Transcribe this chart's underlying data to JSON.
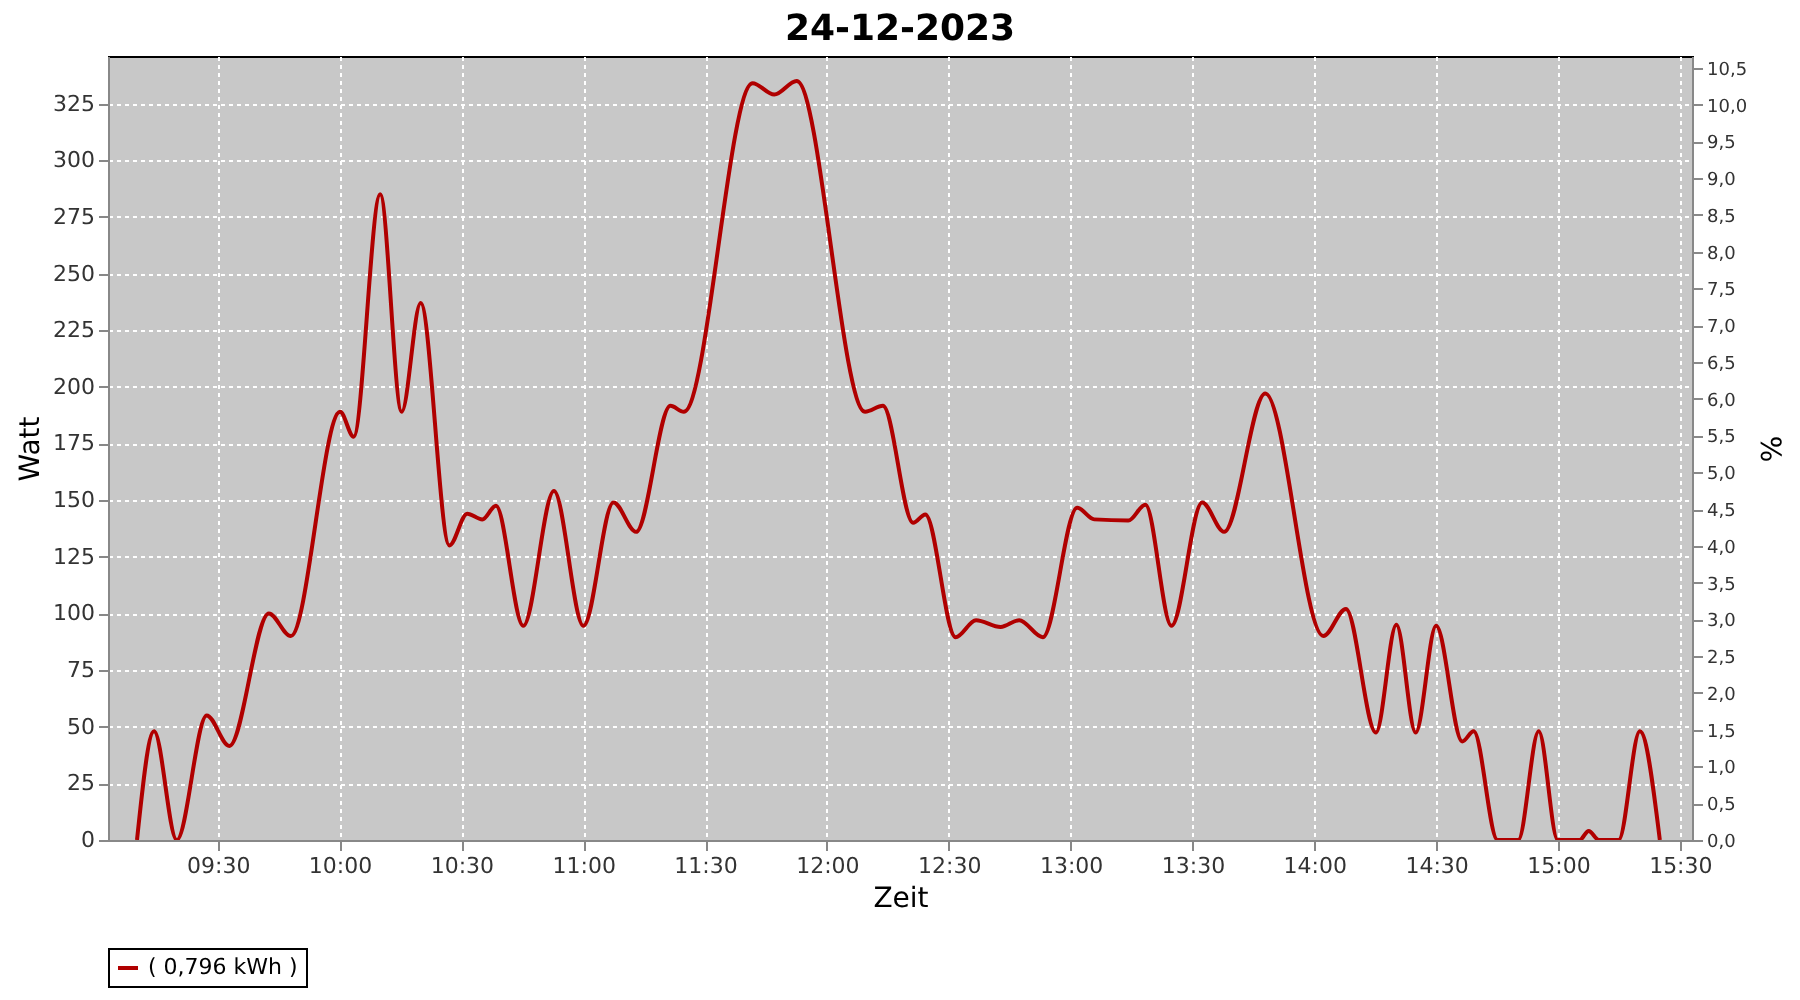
{
  "chart_data": {
    "type": "line",
    "title": "24-12-2023",
    "xlabel": "Zeit",
    "ylabel": "Watt",
    "y2label": "%",
    "x": [
      9.169,
      9.239,
      9.332,
      9.455,
      9.548,
      9.71,
      9.8,
      10.0025,
      10.058,
      10.167,
      10.255,
      10.333,
      10.451,
      10.524,
      10.586,
      10.642,
      10.754,
      10.88,
      11.001,
      11.124,
      11.217,
      11.358,
      11.413,
      11.695,
      11.784,
      11.876,
      12.157,
      12.23,
      12.354,
      12.404,
      12.528,
      12.612,
      12.713,
      12.789,
      12.886,
      13.027,
      13.097,
      13.237,
      13.307,
      13.414,
      13.54,
      13.63,
      13.799,
      14.037,
      14.13,
      14.253,
      14.337,
      14.416,
      14.5,
      14.607,
      14.654,
      14.752,
      14.837,
      14.921,
      14.999,
      15.089,
      15.126,
      15.168,
      15.249,
      15.336,
      15.418
    ],
    "series": [
      {
        "name": "( 0,796 kWh )",
        "color": "#b00000",
        "values": [
          0,
          48,
          0,
          55,
          41.5,
          100,
          90,
          189,
          178,
          285,
          189,
          237,
          130,
          144,
          141.5,
          147.5,
          94.5,
          154,
          94.5,
          149,
          136,
          191.6,
          189,
          334,
          329,
          335,
          189,
          191.6,
          140,
          143.7,
          89.5,
          97,
          94,
          97,
          89.5,
          146.6,
          141.5,
          141,
          148,
          94.5,
          149,
          136,
          197,
          90,
          102,
          47.4,
          95,
          47.4,
          94.5,
          43.5,
          48,
          0,
          0,
          48,
          0,
          0,
          4,
          0,
          0,
          48,
          0
        ]
      }
    ],
    "xlim": [
      9.05,
      15.55
    ],
    "xticks": [
      {
        "value": 9.5,
        "label": "09:30"
      },
      {
        "value": 10,
        "label": "10:00"
      },
      {
        "value": 10.5,
        "label": "10:30"
      },
      {
        "value": 11,
        "label": "11:00"
      },
      {
        "value": 11.5,
        "label": "11:30"
      },
      {
        "value": 12,
        "label": "12:00"
      },
      {
        "value": 12.5,
        "label": "12:30"
      },
      {
        "value": 13,
        "label": "13:00"
      },
      {
        "value": 13.5,
        "label": "13:30"
      },
      {
        "value": 14,
        "label": "14:00"
      },
      {
        "value": 14.5,
        "label": "14:30"
      },
      {
        "value": 15,
        "label": "15:00"
      },
      {
        "value": 15.5,
        "label": "15:30"
      }
    ],
    "ylim": [
      0,
      346
    ],
    "yticks": [
      0,
      25,
      50,
      75,
      100,
      125,
      150,
      175,
      200,
      225,
      250,
      275,
      300,
      325
    ],
    "y2lim": [
      0,
      10.66
    ],
    "y2ticks": [
      {
        "value": 0,
        "label": "0,0"
      },
      {
        "value": 0.5,
        "label": "0,5"
      },
      {
        "value": 1,
        "label": "1,0"
      },
      {
        "value": 1.5,
        "label": "1,5"
      },
      {
        "value": 2,
        "label": "2,0"
      },
      {
        "value": 2.5,
        "label": "2,5"
      },
      {
        "value": 3,
        "label": "3,0"
      },
      {
        "value": 3.5,
        "label": "3,5"
      },
      {
        "value": 4,
        "label": "4,0"
      },
      {
        "value": 4.5,
        "label": "4,5"
      },
      {
        "value": 5,
        "label": "5,0"
      },
      {
        "value": 5.5,
        "label": "5,5"
      },
      {
        "value": 6,
        "label": "6,0"
      },
      {
        "value": 6.5,
        "label": "6,5"
      },
      {
        "value": 7,
        "label": "7,0"
      },
      {
        "value": 7.5,
        "label": "7,5"
      },
      {
        "value": 8,
        "label": "8,0"
      },
      {
        "value": 8.5,
        "label": "8,5"
      },
      {
        "value": 9,
        "label": "9,0"
      },
      {
        "value": 9.5,
        "label": "9,5"
      },
      {
        "value": 10,
        "label": "10,0"
      },
      {
        "value": 10.5,
        "label": "10,5"
      }
    ],
    "grid": true,
    "legend": "bottom",
    "marker": "none",
    "line_style": "solid"
  }
}
